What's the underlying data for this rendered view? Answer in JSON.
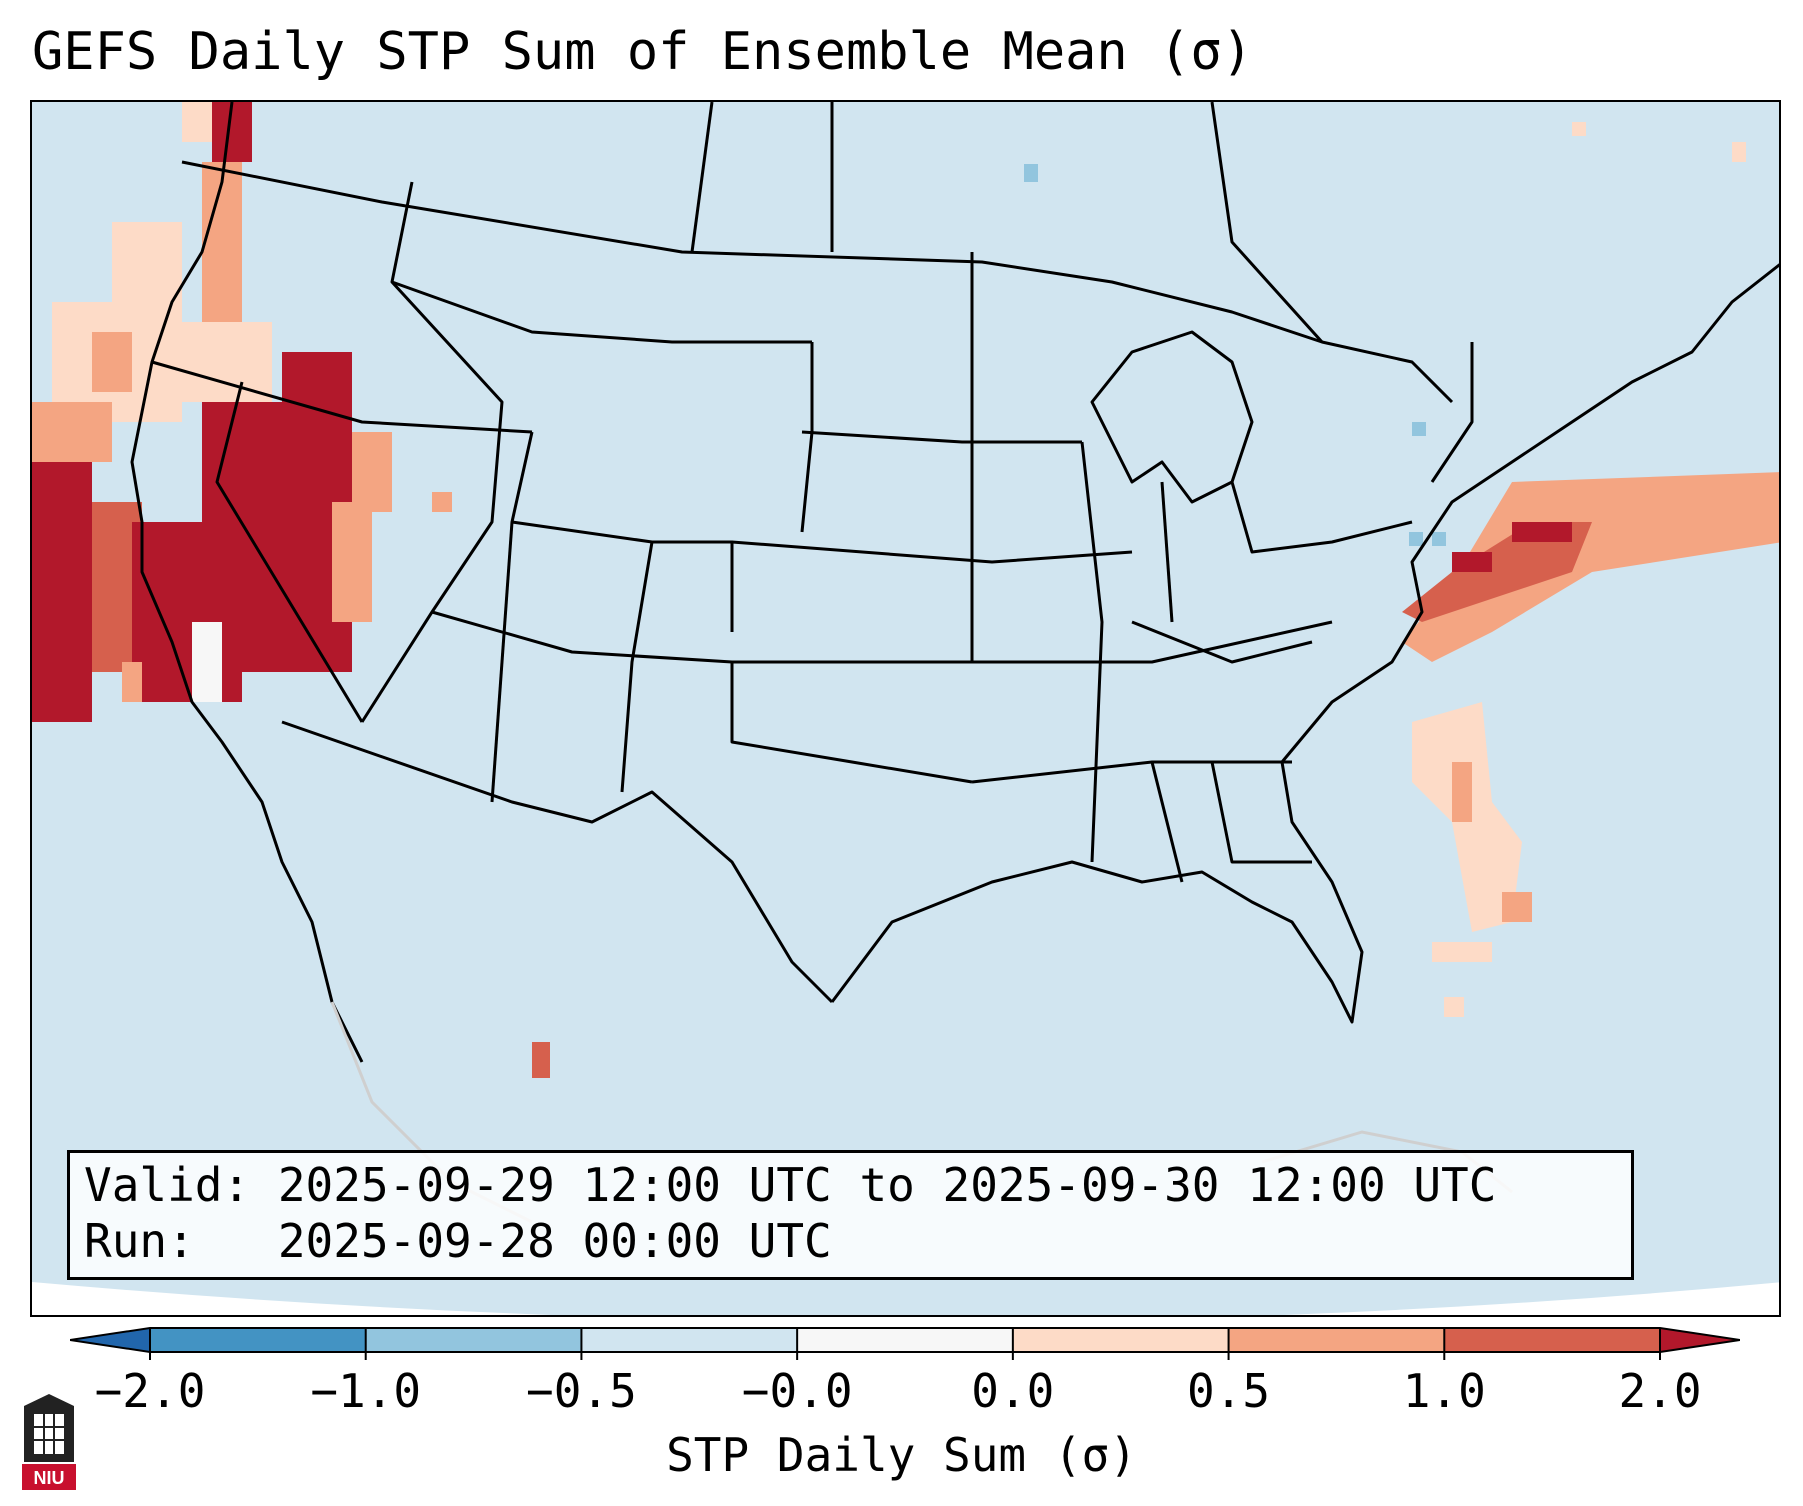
{
  "title": "GEFS Daily STP Sum of Ensemble Mean (σ)",
  "info": {
    "valid_line": "Valid: 2025-09-29 12:00 UTC to 2025-09-30 12:00 UTC",
    "run_line": "Run:   2025-09-28 00:00 UTC"
  },
  "colorbar": {
    "label": "STP Daily Sum (σ)",
    "ticks": [
      "−2.0",
      "−1.0",
      "−0.5",
      "−0.0",
      "0.0",
      "0.5",
      "1.0",
      "2.0"
    ],
    "colors": {
      "under": "#2166ac",
      "bins": [
        "#4393c3",
        "#92c5de",
        "#d1e5f0",
        "#f7f7f7",
        "#fddbc7",
        "#f4a582",
        "#d6604d"
      ],
      "over": "#b2182b"
    }
  },
  "map": {
    "region": "Continental United States",
    "background_color": "#d1e5f0",
    "anomaly_areas": [
      {
        "area": "Northern California / Oregon / Nevada",
        "category": "above 2.0"
      },
      {
        "area": "Pacific coast offshore",
        "category": "0.0 to 2.0"
      },
      {
        "area": "Western Atlantic off Carolinas",
        "category": "0.0 to 2.0"
      }
    ]
  },
  "logo": {
    "text": "NIU"
  }
}
